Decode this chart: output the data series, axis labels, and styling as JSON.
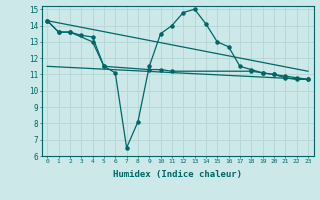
{
  "xlabel": "Humidex (Indice chaleur)",
  "bg_color": "#cce8e8",
  "grid_color": "#b8d8d8",
  "line_color": "#006666",
  "xlim": [
    -0.5,
    23.5
  ],
  "ylim": [
    6,
    15.2
  ],
  "xticks": [
    0,
    1,
    2,
    3,
    4,
    5,
    6,
    7,
    8,
    9,
    10,
    11,
    12,
    13,
    14,
    15,
    16,
    17,
    18,
    19,
    20,
    21,
    22,
    23
  ],
  "yticks": [
    6,
    7,
    8,
    9,
    10,
    11,
    12,
    13,
    14,
    15
  ],
  "series1_x": [
    0,
    1,
    2,
    3,
    4,
    5,
    6,
    7,
    8,
    9,
    10,
    11,
    12,
    13,
    14,
    15,
    16,
    17,
    18,
    19,
    20,
    21,
    22,
    23
  ],
  "series1_y": [
    14.3,
    13.6,
    13.6,
    13.4,
    13.3,
    11.5,
    11.1,
    6.5,
    8.1,
    11.5,
    13.5,
    14.0,
    14.8,
    15.0,
    14.1,
    13.0,
    12.7,
    11.5,
    11.3,
    11.1,
    11.0,
    10.8,
    10.7,
    10.7
  ],
  "series2_x": [
    0,
    1,
    2,
    4,
    5,
    9,
    10,
    11,
    18,
    19,
    20,
    21,
    22,
    23
  ],
  "series2_y": [
    14.3,
    13.6,
    13.6,
    13.0,
    11.5,
    11.3,
    11.3,
    11.2,
    11.2,
    11.1,
    11.0,
    10.9,
    10.8,
    10.7
  ],
  "trend1_x": [
    0,
    23
  ],
  "trend1_y": [
    14.3,
    11.2
  ],
  "trend2_x": [
    0,
    23
  ],
  "trend2_y": [
    11.5,
    10.7
  ]
}
